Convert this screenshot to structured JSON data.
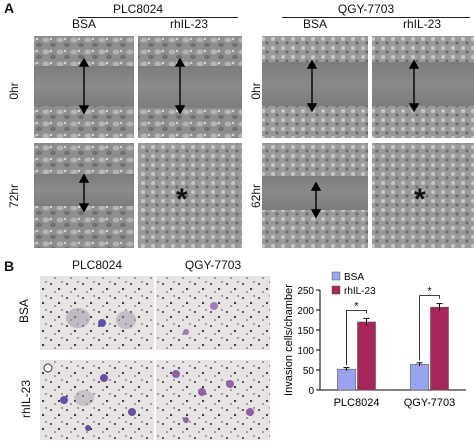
{
  "panel_a": {
    "letter": "A",
    "groups": [
      {
        "name": "PLC8024",
        "conditions": [
          "BSA",
          "rhIL-23"
        ],
        "rows": [
          "0hr",
          "72hr"
        ]
      },
      {
        "name": "QGY-7703",
        "conditions": [
          "BSA",
          "rhIL-23"
        ],
        "rows": [
          "0hr",
          "62hr"
        ]
      }
    ],
    "marker": "*"
  },
  "panel_b": {
    "letter": "B",
    "col_labels": [
      "PLC8024",
      "QGY-7703"
    ],
    "row_labels": [
      "BSA",
      "rhIL-23"
    ]
  },
  "colors": {
    "bsa": "#9aa3f0",
    "rhil23": "#a8265a",
    "stain": "#6a4fa0"
  },
  "chart_data": {
    "type": "bar",
    "categories": [
      "PLC8024",
      "QGY-7703"
    ],
    "series": [
      {
        "name": "BSA",
        "values": [
          52,
          64
        ],
        "errors": [
          4,
          4
        ]
      },
      {
        "name": "rhIL-23",
        "values": [
          170,
          207
        ],
        "errors": [
          9,
          9
        ]
      }
    ],
    "ylabel": "Invasion cells/chamber",
    "ylim": [
      0,
      250
    ],
    "yticks": [
      0,
      50,
      100,
      150,
      200,
      250
    ],
    "significance": [
      "*",
      "*"
    ],
    "legend": "top-left"
  }
}
